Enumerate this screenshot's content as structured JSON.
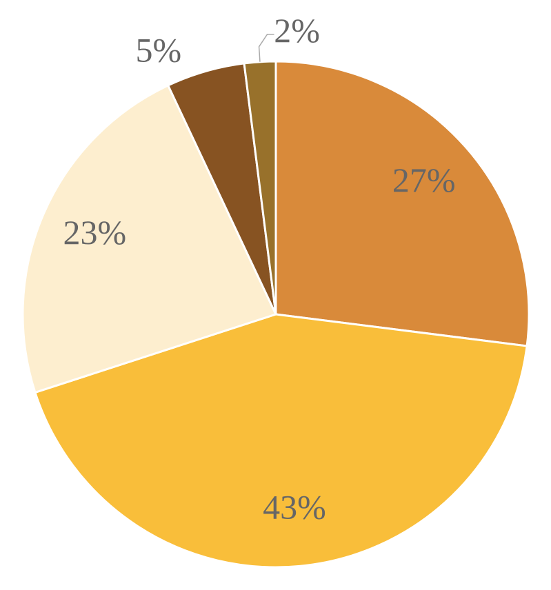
{
  "chart_data": {
    "type": "pie",
    "values": [
      27,
      43,
      23,
      5,
      2
    ],
    "value_labels": [
      "27%",
      "43%",
      "23%",
      "5%",
      "2%"
    ],
    "colors": [
      "#D98A3A",
      "#F9BE3A",
      "#FDEECF",
      "#875322",
      "#98712B"
    ]
  }
}
